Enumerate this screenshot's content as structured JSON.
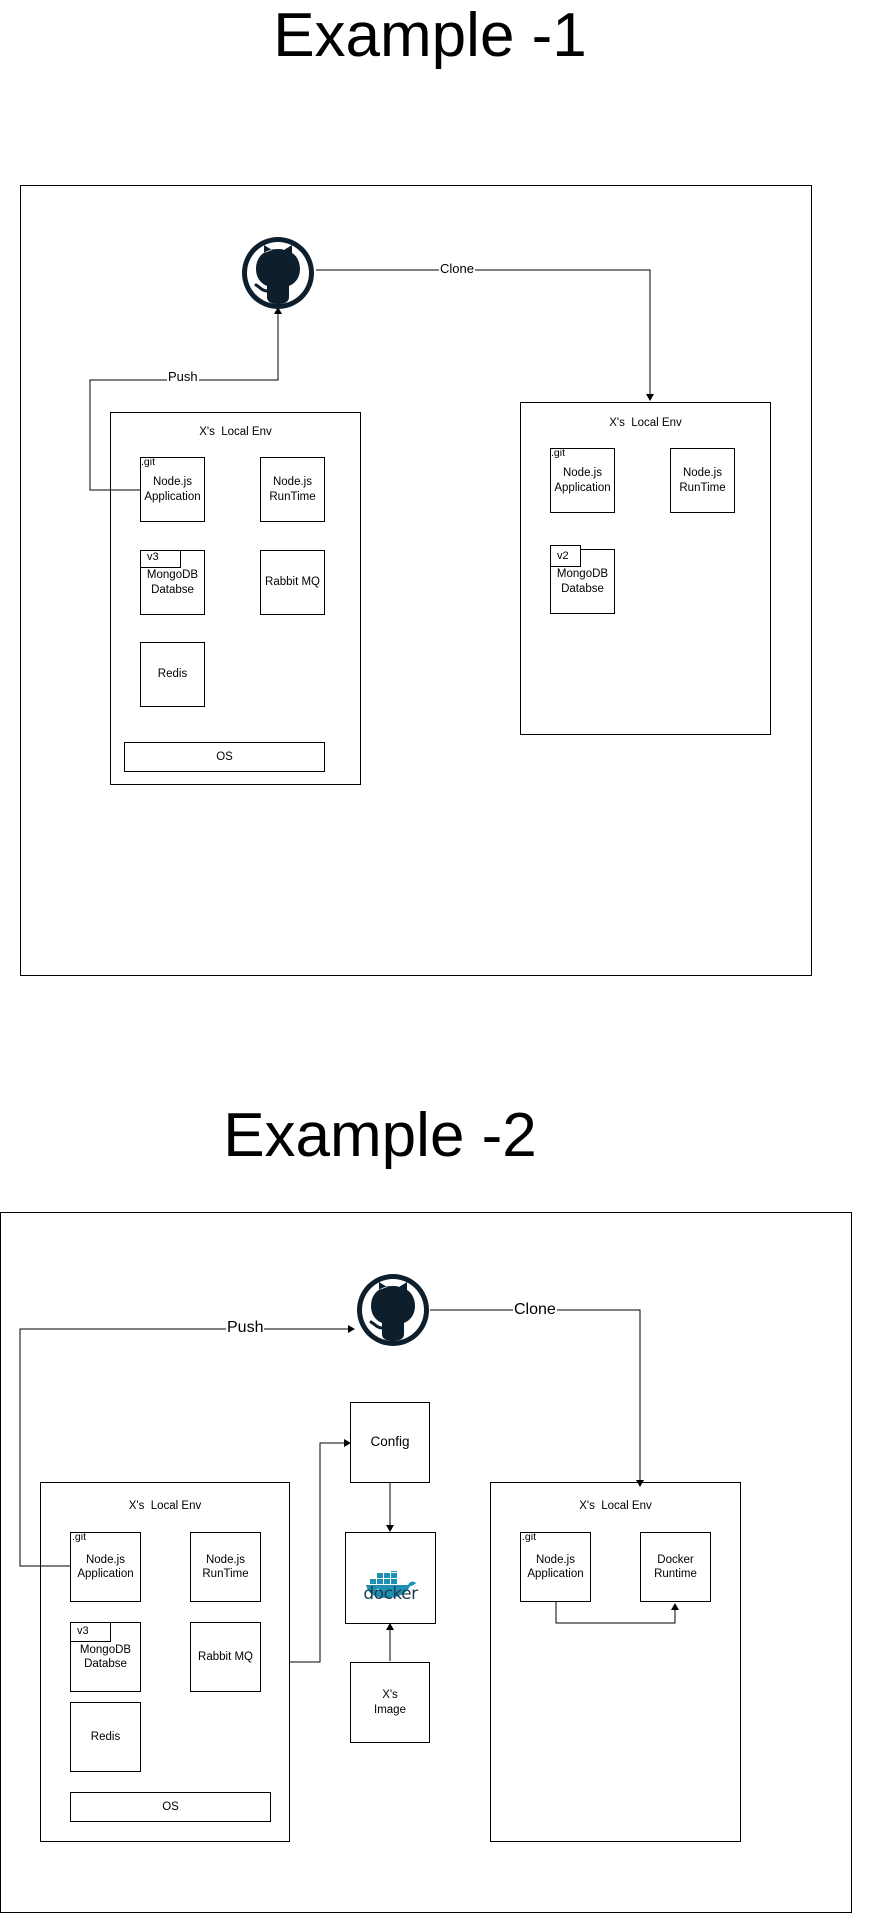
{
  "example1": {
    "title": "Example -1",
    "push_label": "Push",
    "clone_label": "Clone",
    "github_icon": "github-icon",
    "left_env": {
      "label": "X's  Local Env",
      "git_tag": ".git",
      "node_app": "Node.js\nApplication",
      "node_runtime": "Node.js\nRunTime",
      "mongo_version": "v3",
      "mongo": "MongoDB\nDatabse",
      "rabbit": "Rabbit MQ",
      "redis": "Redis",
      "os": "OS"
    },
    "right_env": {
      "label": "X's  Local Env",
      "git_tag": ".git",
      "node_app": "Node.js\nApplication",
      "node_runtime": "Node.js\nRunTime",
      "mongo_version": "v2",
      "mongo": "MongoDB\nDatabse"
    }
  },
  "example2": {
    "title": "Example -2",
    "push_label": "Push",
    "clone_label": "Clone",
    "github_icon": "github-icon",
    "config": "Config",
    "docker_logo_text": "docker",
    "image": "X's\nImage",
    "left_env": {
      "label": "X's  Local Env",
      "git_tag": ".git",
      "node_app": "Node.js\nApplication",
      "node_runtime": "Node.js\nRunTime",
      "mongo_version": "v3",
      "mongo": "MongoDB\nDatabse",
      "rabbit": "Rabbit MQ",
      "redis": "Redis",
      "os": "OS"
    },
    "right_env": {
      "label": "X's  Local Env",
      "git_tag": ".git",
      "node_app": "Node.js\nApplication",
      "docker_runtime": "Docker\nRuntime"
    }
  },
  "colors": {
    "github": "#0d1f2d",
    "docker_blue": "#1d91b4",
    "line": "#000000"
  }
}
